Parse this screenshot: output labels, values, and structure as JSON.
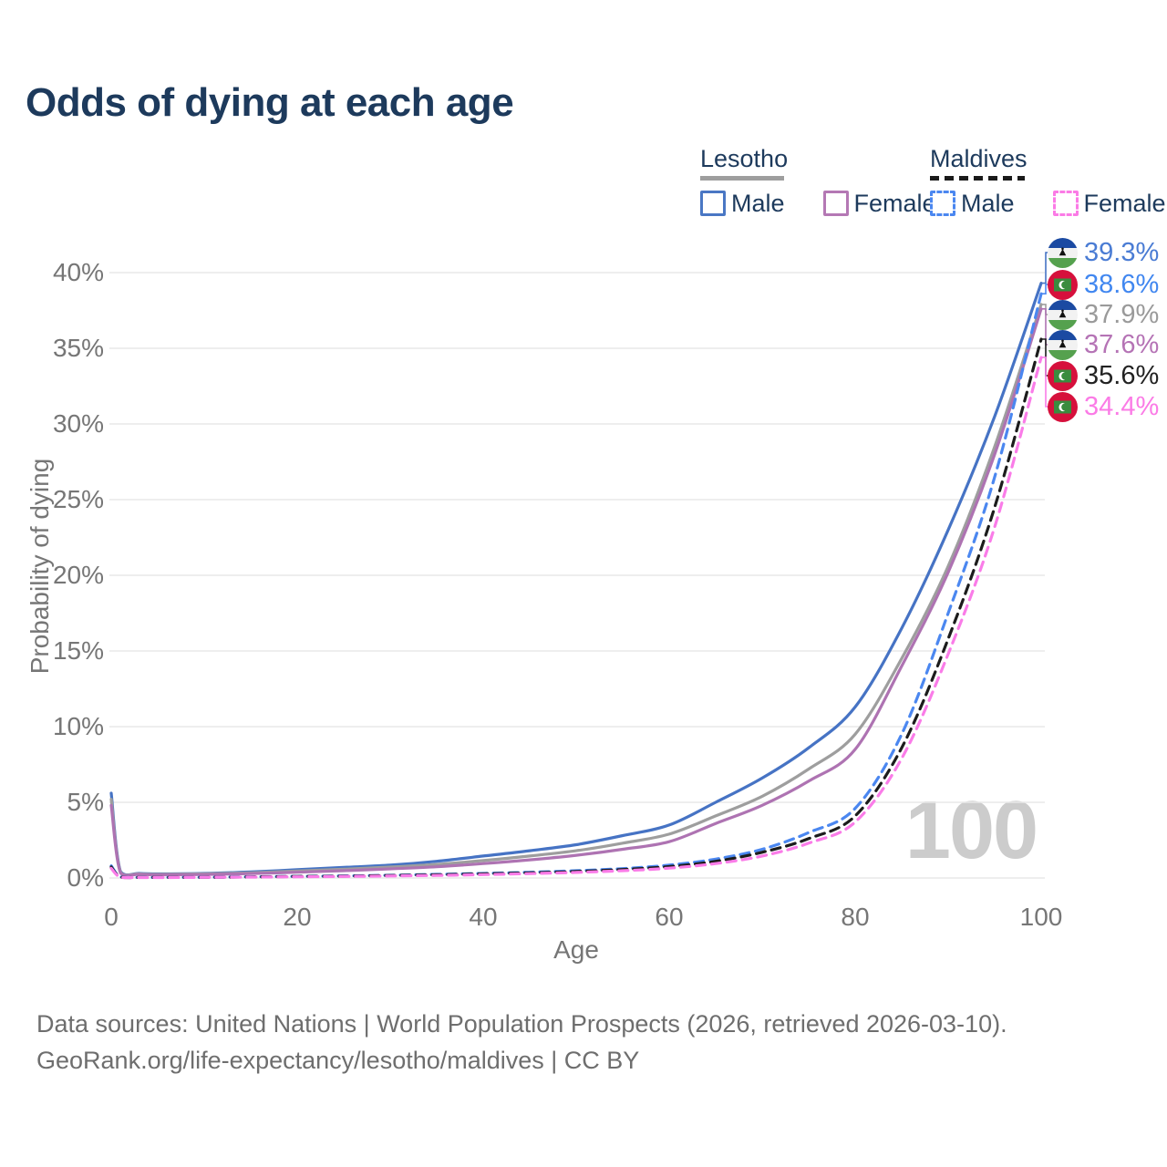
{
  "title": "Odds of dying at each age",
  "legend": {
    "groups": [
      {
        "name": "Lesotho",
        "style": "solid",
        "items": [
          {
            "label": "Male"
          },
          {
            "label": "Female"
          }
        ]
      },
      {
        "name": "Maldives",
        "style": "dashed",
        "items": [
          {
            "label": "Male"
          },
          {
            "label": "Female"
          }
        ]
      }
    ]
  },
  "chart_data": {
    "type": "line",
    "title": "Odds of dying at each age",
    "xlabel": "Age",
    "ylabel": "Probability of dying",
    "xlim": [
      0,
      100
    ],
    "ylim_percent": [
      0,
      40
    ],
    "grid": "horizontal",
    "x_tick_labels": [
      "0",
      "20",
      "40",
      "60",
      "80",
      "100"
    ],
    "x_tick_values": [
      0,
      20,
      40,
      60,
      80,
      100
    ],
    "y_tick_labels": [
      "40%",
      "35%",
      "30%",
      "25%",
      "20%",
      "15%",
      "10%",
      "5%",
      "0%"
    ],
    "y_tick_values": [
      40,
      35,
      30,
      25,
      20,
      15,
      10,
      5,
      0
    ],
    "watermark": "100",
    "x": [
      0,
      1,
      3,
      5,
      10,
      15,
      20,
      25,
      30,
      35,
      40,
      45,
      50,
      55,
      60,
      65,
      70,
      75,
      80,
      85,
      90,
      95,
      100
    ],
    "series": [
      {
        "name": "Lesotho Male",
        "country": "Lesotho",
        "sex": "Male",
        "color": "#4673c4",
        "label_color": "#4a7cd4",
        "dashed": false,
        "end_label": "39.3%",
        "end_value_percent": 39.3,
        "flag": "lesotho",
        "values": [
          5.6,
          0.42,
          0.3,
          0.27,
          0.3,
          0.4,
          0.55,
          0.7,
          0.85,
          1.1,
          1.45,
          1.8,
          2.2,
          2.8,
          3.5,
          5.0,
          6.6,
          8.6,
          11.3,
          16.5,
          23.0,
          30.5,
          39.3
        ]
      },
      {
        "name": "Maldives Male",
        "country": "Maldives",
        "sex": "Male",
        "color": "#4b87f0",
        "label_color": "#4187f0",
        "dashed": true,
        "end_label": "38.6%",
        "end_value_percent": 38.6,
        "flag": "maldives",
        "values": [
          0.8,
          0.07,
          0.04,
          0.04,
          0.05,
          0.08,
          0.11,
          0.14,
          0.18,
          0.24,
          0.3,
          0.38,
          0.48,
          0.62,
          0.85,
          1.25,
          1.9,
          3.0,
          4.6,
          9.5,
          17.5,
          26.5,
          38.6
        ]
      },
      {
        "name": "Lesotho (both sexes)",
        "country": "Lesotho",
        "sex": "Both",
        "color": "#9e9e9e",
        "label_color": "#9a9a9a",
        "dashed": false,
        "end_label": "37.9%",
        "end_value_percent": 37.9,
        "flag": "lesotho",
        "values": [
          5.2,
          0.38,
          0.27,
          0.24,
          0.27,
          0.34,
          0.46,
          0.58,
          0.72,
          0.9,
          1.15,
          1.45,
          1.8,
          2.3,
          2.9,
          4.1,
          5.4,
          7.2,
          9.5,
          14.5,
          20.6,
          28.5,
          37.9
        ]
      },
      {
        "name": "Lesotho Female",
        "country": "Lesotho",
        "sex": "Female",
        "color": "#ae73b2",
        "label_color": "#b573b5",
        "dashed": false,
        "end_label": "37.6%",
        "end_value_percent": 37.6,
        "flag": "lesotho",
        "values": [
          4.8,
          0.33,
          0.24,
          0.21,
          0.23,
          0.29,
          0.38,
          0.48,
          0.6,
          0.74,
          0.95,
          1.2,
          1.5,
          1.9,
          2.4,
          3.6,
          4.8,
          6.4,
          8.5,
          14.0,
          20.2,
          28.0,
          37.6
        ]
      },
      {
        "name": "Maldives (both sexes)",
        "country": "Maldives",
        "sex": "Both",
        "color": "#1c1c1c",
        "label_color": "#222222",
        "dashed": true,
        "end_label": "35.6%",
        "end_value_percent": 35.6,
        "flag": "maldives",
        "values": [
          0.72,
          0.06,
          0.035,
          0.035,
          0.045,
          0.07,
          0.1,
          0.12,
          0.16,
          0.21,
          0.27,
          0.34,
          0.43,
          0.56,
          0.75,
          1.1,
          1.7,
          2.6,
          4.1,
          8.6,
          15.8,
          24.5,
          35.6
        ]
      },
      {
        "name": "Maldives Female",
        "country": "Maldives",
        "sex": "Female",
        "color": "#fa7ce8",
        "label_color": "#fb7be6",
        "dashed": true,
        "end_label": "34.4%",
        "end_value_percent": 34.4,
        "flag": "maldives",
        "values": [
          0.64,
          0.05,
          0.03,
          0.03,
          0.04,
          0.06,
          0.08,
          0.1,
          0.13,
          0.17,
          0.22,
          0.29,
          0.37,
          0.48,
          0.65,
          0.95,
          1.45,
          2.3,
          3.7,
          7.9,
          14.8,
          23.2,
          34.4
        ]
      }
    ]
  },
  "colors": {
    "title_text": "#1d3a5c",
    "axis_text": "#767676",
    "gridline": "#e9e9e9",
    "watermark": "#cccccc",
    "footer_text": "#6e6e6e"
  },
  "footer": {
    "line1": "Data sources: United Nations | World Population Prospects (2026, retrieved 2026-03-10).",
    "line2": "GeoRank.org/life-expectancy/lesotho/maldives | CC BY"
  }
}
